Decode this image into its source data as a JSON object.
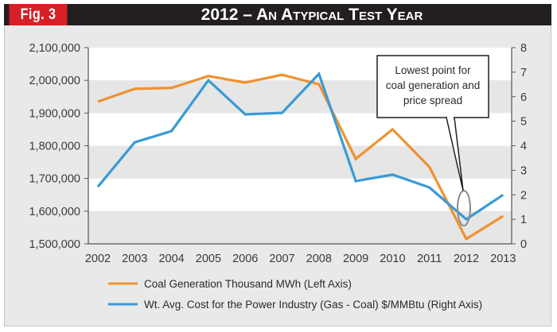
{
  "header": {
    "figure_label": "Fig. 3",
    "title": "2012 – An Atypical Test Year"
  },
  "colors": {
    "coal": "#f0912f",
    "spread": "#3a9ad4",
    "header_bg": "#231f20",
    "fig_bg": "#d71f26"
  },
  "chart_data": {
    "type": "line",
    "title": "2012 – An Atypical Test Year",
    "x": [
      "2002",
      "2003",
      "2004",
      "2005",
      "2006",
      "2007",
      "2008",
      "2009",
      "2010",
      "2011",
      "2012",
      "2013"
    ],
    "series": [
      {
        "name": "Coal Generation Thousand MWh (Left Axis)",
        "axis": "left",
        "color": "#f0912f",
        "values": [
          1935000,
          1974000,
          1977000,
          2013000,
          1993000,
          2017000,
          1988000,
          1760000,
          1850000,
          1735000,
          1515000,
          1585000
        ]
      },
      {
        "name": "Wt. Avg. Cost for the Power Industry (Gas - Coal) $/MMBtu (Right Axis)",
        "axis": "right",
        "color": "#3a9ad4",
        "values": [
          2.33,
          4.14,
          4.6,
          6.67,
          5.28,
          5.34,
          6.93,
          2.56,
          2.82,
          2.3,
          1.0,
          2.0
        ]
      }
    ],
    "left_axis": {
      "ylim": [
        1500000,
        2100000
      ],
      "ticks": [
        1500000,
        1600000,
        1700000,
        1800000,
        1900000,
        2000000,
        2100000
      ],
      "tick_labels": [
        "1,500,000",
        "1,600,000",
        "1,700,000",
        "1,800,000",
        "1,900,000",
        "2,000,000",
        "2,100,000"
      ]
    },
    "right_axis": {
      "ylim": [
        0,
        8
      ],
      "ticks": [
        0,
        1,
        2,
        3,
        4,
        5,
        6,
        7,
        8
      ],
      "tick_labels": [
        "0",
        "1",
        "2",
        "3",
        "4",
        "5",
        "6",
        "7",
        "8"
      ]
    },
    "xlabel": "",
    "ylabel": "",
    "grid": "alternating horizontal bands",
    "legend": "bottom",
    "annotation": {
      "text_lines": [
        "Lowest point for",
        "coal generation and",
        "price spread"
      ],
      "target_x": "2012"
    }
  }
}
